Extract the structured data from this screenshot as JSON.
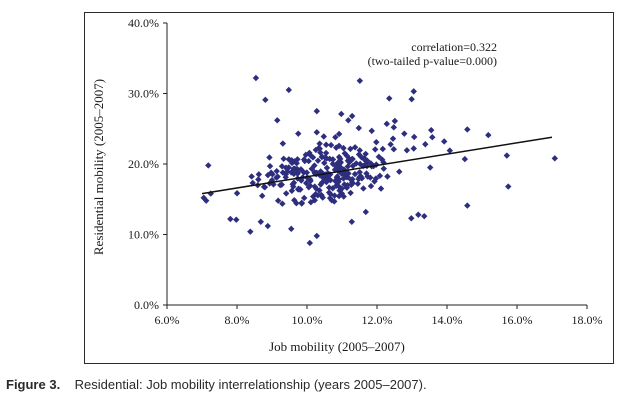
{
  "chart_data": {
    "type": "scatter",
    "title": "",
    "xlabel": "Job mobility (2005–2007)",
    "ylabel": "Residential mobility (2005–2007)",
    "xlim": [
      0.06,
      0.18
    ],
    "ylim": [
      0.0,
      0.4
    ],
    "x_ticks": [
      "6.0%",
      "8.0%",
      "10.0%",
      "12.0%",
      "14.0%",
      "16.0%",
      "18.0%"
    ],
    "y_ticks": [
      "0.0%",
      "10.0%",
      "20.0%",
      "30.0%",
      "40.0%"
    ],
    "grid": false,
    "marker": "diamond",
    "point_color": "#2e2e7e",
    "trendline": {
      "x": [
        0.07,
        0.17
      ],
      "y": [
        0.158,
        0.238
      ],
      "color": "#111111"
    },
    "annotation": [
      "correlation=0.322",
      "(two-tailed p-value=0.000)"
    ],
    "n_points": 300,
    "random_seed": 20052007,
    "x": [
      0.0854,
      0.0881,
      0.1151,
      0.0948,
      0.1305,
      0.1299,
      0.1235,
      0.1228,
      0.1118,
      0.1028,
      0.1098,
      0.1129,
      0.1251,
      0.1248,
      0.1458,
      0.1571,
      0.1708,
      0.1305,
      0.1338,
      0.1518,
      0.1408,
      0.1451,
      0.1575,
      0.1008,
      0.0838,
      0.0712,
      0.0781,
      0.0798,
      0.0868,
      0.0888,
      0.0955,
      0.1128,
      0.1168,
      0.1298,
      0.1318,
      0.1335,
      0.1028,
      0.0718,
      0.0725,
      0.0705,
      0.1198,
      0.1048,
      0.0975,
      0.0931,
      0.1148,
      0.1185,
      0.1278,
      0.1358,
      0.1392,
      0.1355,
      0.1248,
      0.1108,
      0.0861,
      0.0915,
      0.1028,
      0.1081,
      0.1352,
      0.1458
    ],
    "y": [
      0.322,
      0.291,
      0.318,
      0.305,
      0.303,
      0.292,
      0.293,
      0.257,
      0.262,
      0.275,
      0.271,
      0.268,
      0.261,
      0.252,
      0.249,
      0.212,
      0.208,
      0.222,
      0.228,
      0.241,
      0.219,
      0.207,
      0.168,
      0.088,
      0.104,
      0.148,
      0.122,
      0.121,
      0.118,
      0.112,
      0.108,
      0.118,
      0.132,
      0.123,
      0.128,
      0.126,
      0.098,
      0.198,
      0.158,
      0.152,
      0.231,
      0.239,
      0.243,
      0.229,
      0.251,
      0.247,
      0.243,
      0.238,
      0.232,
      0.248,
      0.221,
      0.215,
      0.178,
      0.262,
      0.245,
      0.238,
      0.195,
      0.141
    ]
  },
  "caption": {
    "figure_label": "Figure 3.",
    "text": "Residential: Job mobility interrelationship (years 2005–2007)."
  }
}
